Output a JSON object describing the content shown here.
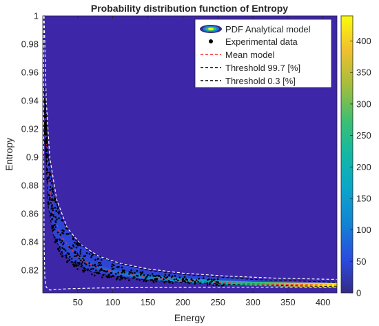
{
  "chart_data": {
    "type": "heatmap",
    "title": "Probability distribution function of Entropy",
    "xlabel": "Energy",
    "ylabel": "Entropy",
    "xlim": [
      0,
      420
    ],
    "ylim": [
      0.804,
      1.0
    ],
    "xticks": [
      50,
      100,
      150,
      200,
      250,
      300,
      350,
      400
    ],
    "xtick_labels": [
      "50",
      "100",
      "150",
      "200",
      "250",
      "300",
      "350",
      "400"
    ],
    "yticks": [
      0.82,
      0.84,
      0.86,
      0.88,
      0.9,
      0.92,
      0.94,
      0.96,
      0.98,
      1.0
    ],
    "ytick_labels": [
      "0.82",
      "0.84",
      "0.86",
      "0.88",
      "0.9",
      "0.92",
      "0.94",
      "0.96",
      "0.98",
      "1"
    ],
    "colorbar": {
      "range": [
        0,
        440
      ],
      "ticks": [
        0,
        50,
        100,
        150,
        200,
        250,
        300,
        350,
        400
      ],
      "tick_labels": [
        "0",
        "50",
        "100",
        "150",
        "200",
        "250",
        "300",
        "350",
        "400"
      ],
      "colormap": "parula"
    },
    "legend": {
      "placement": "top-right",
      "entries": [
        {
          "label": "PDF Analytical model",
          "style": "contour"
        },
        {
          "label": "Experimental data",
          "style": "marker",
          "color": "#000000"
        },
        {
          "label": "Mean model",
          "style": "dashed",
          "color": "#ff2a2a"
        },
        {
          "label": "Threshold 99.7 [%]",
          "style": "dashed",
          "color": "#000000"
        },
        {
          "label": "Threshold 0.3 [%]",
          "style": "dashed",
          "color": "#000000"
        }
      ]
    },
    "mean_model": [
      {
        "x": 3,
        "y": 0.93
      },
      {
        "x": 8,
        "y": 0.885
      },
      {
        "x": 15,
        "y": 0.86
      },
      {
        "x": 25,
        "y": 0.845
      },
      {
        "x": 40,
        "y": 0.835
      },
      {
        "x": 60,
        "y": 0.826
      },
      {
        "x": 80,
        "y": 0.822
      },
      {
        "x": 100,
        "y": 0.819
      },
      {
        "x": 150,
        "y": 0.815
      },
      {
        "x": 200,
        "y": 0.813
      },
      {
        "x": 250,
        "y": 0.8115
      },
      {
        "x": 300,
        "y": 0.8105
      },
      {
        "x": 350,
        "y": 0.81
      },
      {
        "x": 420,
        "y": 0.8095
      }
    ],
    "threshold_upper_wide": [
      {
        "x": 2,
        "y": 1.0
      },
      {
        "x": 5,
        "y": 0.94
      },
      {
        "x": 10,
        "y": 0.9
      },
      {
        "x": 20,
        "y": 0.87
      },
      {
        "x": 35,
        "y": 0.85
      },
      {
        "x": 55,
        "y": 0.838
      },
      {
        "x": 80,
        "y": 0.83
      },
      {
        "x": 110,
        "y": 0.825
      },
      {
        "x": 150,
        "y": 0.821
      },
      {
        "x": 200,
        "y": 0.818
      },
      {
        "x": 260,
        "y": 0.816
      },
      {
        "x": 330,
        "y": 0.8145
      },
      {
        "x": 420,
        "y": 0.8135
      }
    ],
    "threshold_lower_wide": [
      {
        "x": 1,
        "y": 1.0
      },
      {
        "x": 1.5,
        "y": 0.9
      },
      {
        "x": 2,
        "y": 0.84
      },
      {
        "x": 3,
        "y": 0.815
      },
      {
        "x": 5,
        "y": 0.808
      },
      {
        "x": 10,
        "y": 0.806
      },
      {
        "x": 20,
        "y": 0.8065
      },
      {
        "x": 40,
        "y": 0.807
      },
      {
        "x": 80,
        "y": 0.8075
      },
      {
        "x": 150,
        "y": 0.8078
      },
      {
        "x": 250,
        "y": 0.808
      },
      {
        "x": 420,
        "y": 0.808
      }
    ],
    "threshold_upper_narrow": [
      {
        "x": 3,
        "y": 0.94
      },
      {
        "x": 8,
        "y": 0.9
      },
      {
        "x": 15,
        "y": 0.875
      },
      {
        "x": 28,
        "y": 0.855
      },
      {
        "x": 45,
        "y": 0.842
      },
      {
        "x": 70,
        "y": 0.832
      },
      {
        "x": 100,
        "y": 0.826
      },
      {
        "x": 150,
        "y": 0.82
      },
      {
        "x": 200,
        "y": 0.817
      },
      {
        "x": 300,
        "y": 0.8135
      },
      {
        "x": 420,
        "y": 0.8115
      }
    ],
    "threshold_lower_narrow": [
      {
        "x": 4,
        "y": 0.91
      },
      {
        "x": 8,
        "y": 0.865
      },
      {
        "x": 15,
        "y": 0.845
      },
      {
        "x": 28,
        "y": 0.832
      },
      {
        "x": 45,
        "y": 0.825
      },
      {
        "x": 70,
        "y": 0.819
      },
      {
        "x": 100,
        "y": 0.816
      },
      {
        "x": 150,
        "y": 0.813
      },
      {
        "x": 200,
        "y": 0.8115
      },
      {
        "x": 300,
        "y": 0.8095
      },
      {
        "x": 420,
        "y": 0.8085
      }
    ],
    "experimental_data_description": "scattered black points clustered along the mean curve, densest for Energy < 100",
    "experimental_data_sample": [
      {
        "x": 3,
        "y": 0.945
      },
      {
        "x": 5,
        "y": 0.92
      },
      {
        "x": 6,
        "y": 0.9
      },
      {
        "x": 8,
        "y": 0.885
      },
      {
        "x": 10,
        "y": 0.87
      },
      {
        "x": 12,
        "y": 0.86
      },
      {
        "x": 14,
        "y": 0.85
      },
      {
        "x": 18,
        "y": 0.84
      },
      {
        "x": 22,
        "y": 0.835
      },
      {
        "x": 28,
        "y": 0.83
      },
      {
        "x": 35,
        "y": 0.826
      },
      {
        "x": 45,
        "y": 0.823
      },
      {
        "x": 60,
        "y": 0.82
      },
      {
        "x": 80,
        "y": 0.818
      },
      {
        "x": 100,
        "y": 0.816
      },
      {
        "x": 130,
        "y": 0.815
      },
      {
        "x": 160,
        "y": 0.8135
      },
      {
        "x": 200,
        "y": 0.8125
      },
      {
        "x": 250,
        "y": 0.8115
      }
    ],
    "colors": {
      "background": "#3d26a8",
      "axes_text": "#262626",
      "mean_line": "#ff2a2a",
      "threshold_wide": "#ffffff",
      "threshold_narrow": "#000000"
    }
  }
}
